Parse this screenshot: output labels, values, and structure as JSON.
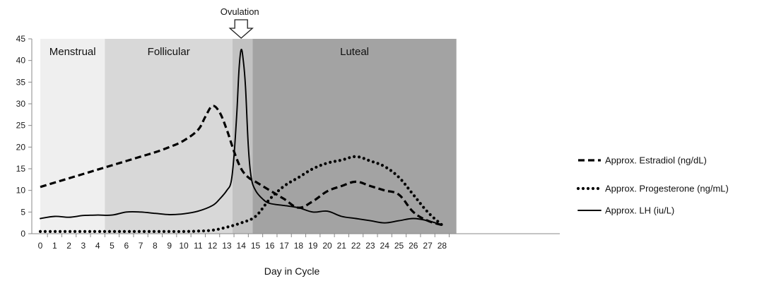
{
  "chart_data": {
    "type": "line",
    "xlabel": "Day in Cycle",
    "xlim": [
      0,
      29
    ],
    "ylim": [
      0,
      45
    ],
    "yticks": [
      0,
      5,
      10,
      15,
      20,
      25,
      30,
      35,
      40,
      45
    ],
    "xticks": [
      0,
      1,
      2,
      3,
      4,
      5,
      6,
      7,
      8,
      9,
      10,
      11,
      12,
      13,
      14,
      15,
      16,
      17,
      18,
      19,
      20,
      21,
      22,
      23,
      24,
      25,
      26,
      27,
      28
    ],
    "grid": false,
    "legend_position": "right",
    "phases": [
      {
        "name": "Menstrual",
        "start": 0,
        "end": 4.5,
        "color": "#efefef"
      },
      {
        "name": "Follicular",
        "start": 4.5,
        "end": 13.4,
        "color": "#d8d8d8"
      },
      {
        "name": "",
        "start": 13.4,
        "end": 14.8,
        "color": "#c2c2c2"
      },
      {
        "name": "Luteal",
        "start": 14.8,
        "end": 29,
        "color": "#a3a3a3"
      }
    ],
    "annotation": {
      "text": "Ovulation",
      "x": 14,
      "marker": "down-arrow"
    },
    "series": [
      {
        "name": "Approx. Estradiol (ng/dL)",
        "style": "dashed",
        "points": [
          [
            0,
            10.8
          ],
          [
            1,
            11.8
          ],
          [
            2,
            12.8
          ],
          [
            3,
            13.8
          ],
          [
            4,
            14.8
          ],
          [
            5,
            15.8
          ],
          [
            6,
            16.8
          ],
          [
            7,
            17.8
          ],
          [
            8,
            18.8
          ],
          [
            9,
            20
          ],
          [
            10,
            21.5
          ],
          [
            11,
            24
          ],
          [
            11.5,
            27
          ],
          [
            12,
            29.5
          ],
          [
            12.5,
            28
          ],
          [
            13,
            24
          ],
          [
            13.5,
            19
          ],
          [
            14,
            15
          ],
          [
            14.5,
            13
          ],
          [
            15,
            12
          ],
          [
            16,
            10
          ],
          [
            17,
            8
          ],
          [
            18,
            6
          ],
          [
            19,
            7.5
          ],
          [
            20,
            9.8
          ],
          [
            21,
            11
          ],
          [
            22,
            12
          ],
          [
            23,
            11
          ],
          [
            24,
            10
          ],
          [
            25,
            9
          ],
          [
            26,
            5
          ],
          [
            27,
            3
          ],
          [
            28,
            2
          ]
        ]
      },
      {
        "name": "Approx. Progesterone (ng/mL)",
        "style": "dotted",
        "points": [
          [
            0,
            0.5
          ],
          [
            1,
            0.5
          ],
          [
            2,
            0.5
          ],
          [
            3,
            0.5
          ],
          [
            4,
            0.5
          ],
          [
            5,
            0.5
          ],
          [
            6,
            0.5
          ],
          [
            7,
            0.5
          ],
          [
            8,
            0.5
          ],
          [
            9,
            0.5
          ],
          [
            10,
            0.5
          ],
          [
            11,
            0.6
          ],
          [
            12,
            0.8
          ],
          [
            13,
            1.5
          ],
          [
            14,
            2.5
          ],
          [
            15,
            4
          ],
          [
            16,
            8
          ],
          [
            17,
            11
          ],
          [
            18,
            13
          ],
          [
            19,
            15
          ],
          [
            20,
            16.3
          ],
          [
            21,
            17
          ],
          [
            22,
            17.8
          ],
          [
            23,
            16.8
          ],
          [
            24,
            15.5
          ],
          [
            25,
            13
          ],
          [
            26,
            9
          ],
          [
            27,
            5
          ],
          [
            28,
            2
          ]
        ]
      },
      {
        "name": "Approx. LH (iu/L)",
        "style": "solid",
        "points": [
          [
            0,
            3.5
          ],
          [
            1,
            4
          ],
          [
            2,
            3.8
          ],
          [
            3,
            4.2
          ],
          [
            4,
            4.3
          ],
          [
            5,
            4.3
          ],
          [
            6,
            5
          ],
          [
            7,
            5
          ],
          [
            8,
            4.7
          ],
          [
            9,
            4.4
          ],
          [
            10,
            4.6
          ],
          [
            11,
            5.2
          ],
          [
            12,
            6.5
          ],
          [
            12.5,
            8
          ],
          [
            13,
            10
          ],
          [
            13.3,
            12
          ],
          [
            13.5,
            18
          ],
          [
            13.7,
            28
          ],
          [
            13.85,
            38
          ],
          [
            14,
            42.5
          ],
          [
            14.15,
            40
          ],
          [
            14.3,
            34
          ],
          [
            14.5,
            20
          ],
          [
            14.7,
            13
          ],
          [
            15,
            10
          ],
          [
            15.5,
            8
          ],
          [
            16,
            7
          ],
          [
            17,
            6.5
          ],
          [
            18,
            6
          ],
          [
            19,
            5
          ],
          [
            20,
            5.2
          ],
          [
            21,
            4
          ],
          [
            22,
            3.5
          ],
          [
            23,
            3
          ],
          [
            24,
            2.5
          ],
          [
            25,
            3
          ],
          [
            26,
            3.5
          ],
          [
            27,
            3
          ],
          [
            28,
            2
          ]
        ]
      }
    ]
  },
  "colors": {
    "line": "#000000",
    "axis": "#888888"
  },
  "arrow_icon": "down-arrow-icon"
}
